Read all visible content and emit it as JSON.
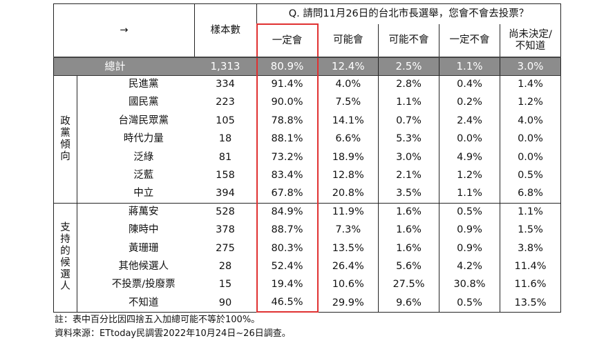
{
  "chart_data": {
    "type": "table",
    "question": "Q. 請問11月26日的台北市長選舉，您會不會去投票？",
    "arrow": "→",
    "sample_header": "樣本數",
    "options": [
      "一定會",
      "可能會",
      "可能不會",
      "一定不會",
      "尚未決定/\n不知道"
    ],
    "total": {
      "label": "總計",
      "n": "1,313",
      "values": [
        "80.9%",
        "12.4%",
        "2.5%",
        "1.1%",
        "3.0%"
      ]
    },
    "groups": [
      {
        "name": "政黨傾向",
        "rows": [
          {
            "label": "民進黨",
            "n": "334",
            "values": [
              "91.4%",
              "4.0%",
              "2.8%",
              "0.4%",
              "1.4%"
            ]
          },
          {
            "label": "國民黨",
            "n": "223",
            "values": [
              "90.0%",
              "7.5%",
              "1.1%",
              "0.2%",
              "1.2%"
            ]
          },
          {
            "label": "台灣民眾黨",
            "n": "105",
            "values": [
              "78.8%",
              "14.1%",
              "0.7%",
              "2.4%",
              "4.0%"
            ]
          },
          {
            "label": "時代力量",
            "n": "18",
            "values": [
              "88.1%",
              "6.6%",
              "5.3%",
              "0.0%",
              "0.0%"
            ]
          },
          {
            "label": "泛綠",
            "n": "81",
            "values": [
              "73.2%",
              "18.9%",
              "3.0%",
              "4.9%",
              "0.0%"
            ]
          },
          {
            "label": "泛藍",
            "n": "158",
            "values": [
              "83.4%",
              "12.8%",
              "2.1%",
              "1.2%",
              "0.5%"
            ]
          },
          {
            "label": "中立",
            "n": "394",
            "values": [
              "67.8%",
              "20.8%",
              "3.5%",
              "1.1%",
              "6.8%"
            ]
          }
        ]
      },
      {
        "name": "支持的候選人",
        "rows": [
          {
            "label": "蔣萬安",
            "n": "528",
            "values": [
              "84.9%",
              "11.9%",
              "1.6%",
              "0.5%",
              "1.1%"
            ]
          },
          {
            "label": "陳時中",
            "n": "378",
            "values": [
              "88.7%",
              "7.3%",
              "1.6%",
              "0.9%",
              "1.5%"
            ]
          },
          {
            "label": "黃珊珊",
            "n": "275",
            "values": [
              "80.3%",
              "13.5%",
              "1.6%",
              "0.9%",
              "3.8%"
            ]
          },
          {
            "label": "其他候選人",
            "n": "28",
            "values": [
              "52.4%",
              "26.4%",
              "5.6%",
              "4.2%",
              "11.4%"
            ]
          },
          {
            "label": "不投票/投廢票",
            "n": "15",
            "values": [
              "19.4%",
              "10.6%",
              "27.5%",
              "30.8%",
              "11.6%"
            ]
          },
          {
            "label": "不知道",
            "n": "90",
            "values": [
              "46.5%",
              "29.9%",
              "9.6%",
              "0.5%",
              "13.5%"
            ]
          }
        ]
      }
    ],
    "highlight_column": "一定會",
    "highlight_color": "#e03030",
    "total_row_color": "#8c8c8c"
  },
  "notes": {
    "footnote": "註：表中百分比因四捨五入加總可能不等於100%。",
    "source": "資料來源：ETtoday民調雲2022年10月24日~26日調查。"
  }
}
